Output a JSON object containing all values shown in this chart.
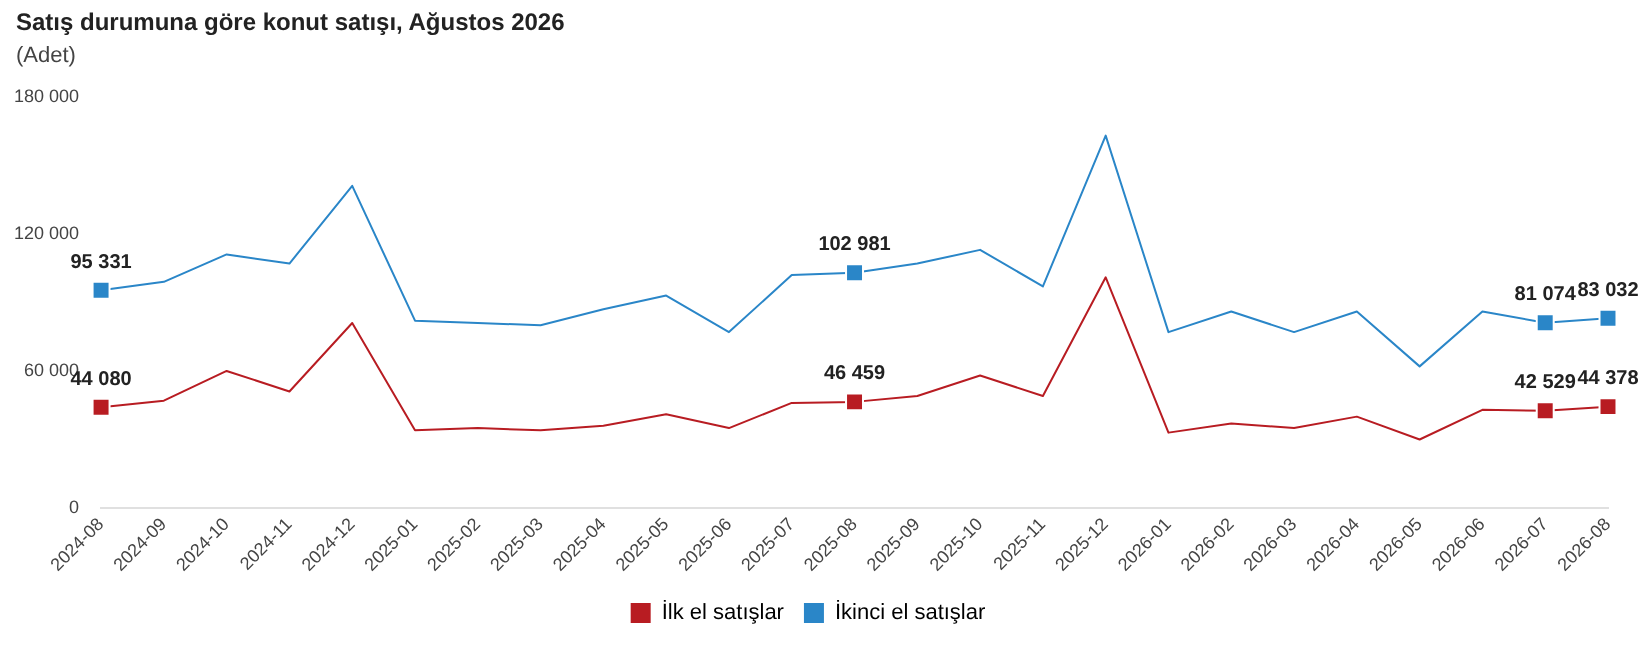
{
  "chart_data": {
    "type": "line",
    "title": "Satış durumuna göre konut satışı, Ağustos 2026",
    "subtitle": "(Adet)",
    "categories": [
      "2024-08",
      "2024-09",
      "2024-10",
      "2024-11",
      "2024-12",
      "2025-01",
      "2025-02",
      "2025-03",
      "2025-04",
      "2025-05",
      "2025-06",
      "2025-07",
      "2025-08",
      "2025-09",
      "2025-10",
      "2025-11",
      "2025-12",
      "2026-01",
      "2026-02",
      "2026-03",
      "2026-04",
      "2026-05",
      "2026-06",
      "2026-07",
      "2026-08"
    ],
    "series": [
      {
        "name": "İlk el satışlar",
        "color": "#b81c22",
        "values": [
          44080,
          47000,
          60000,
          51000,
          81000,
          34000,
          35000,
          34000,
          36000,
          41000,
          35000,
          46000,
          46459,
          49000,
          58000,
          49000,
          101000,
          33000,
          37000,
          35000,
          40000,
          30000,
          43000,
          42529,
          44378
        ],
        "value_labels": [
          "44 080",
          null,
          null,
          null,
          null,
          null,
          null,
          null,
          null,
          null,
          null,
          null,
          "46 459",
          null,
          null,
          null,
          null,
          null,
          null,
          null,
          null,
          null,
          null,
          "42 529",
          "44 378"
        ]
      },
      {
        "name": "İkinci el satışlar",
        "color": "#2a86c8",
        "values": [
          95331,
          99000,
          111000,
          107000,
          141000,
          82000,
          81000,
          80000,
          87000,
          93000,
          77000,
          102000,
          102981,
          107000,
          113000,
          97000,
          163000,
          77000,
          86000,
          77000,
          86000,
          62000,
          86000,
          81074,
          83032
        ],
        "value_labels": [
          "95 331",
          null,
          null,
          null,
          null,
          null,
          null,
          null,
          null,
          null,
          null,
          null,
          "102 981",
          null,
          null,
          null,
          null,
          null,
          null,
          null,
          null,
          null,
          null,
          "81 074",
          "83 032"
        ]
      }
    ],
    "ylim": [
      0,
      180000
    ],
    "yticks": [
      {
        "value": 0,
        "label": "0"
      },
      {
        "value": 60000,
        "label": "60 000"
      },
      {
        "value": 120000,
        "label": "120 000"
      },
      {
        "value": 180000,
        "label": "180 000"
      }
    ],
    "grid": false,
    "legend": "bottom",
    "line_style": "solid"
  }
}
